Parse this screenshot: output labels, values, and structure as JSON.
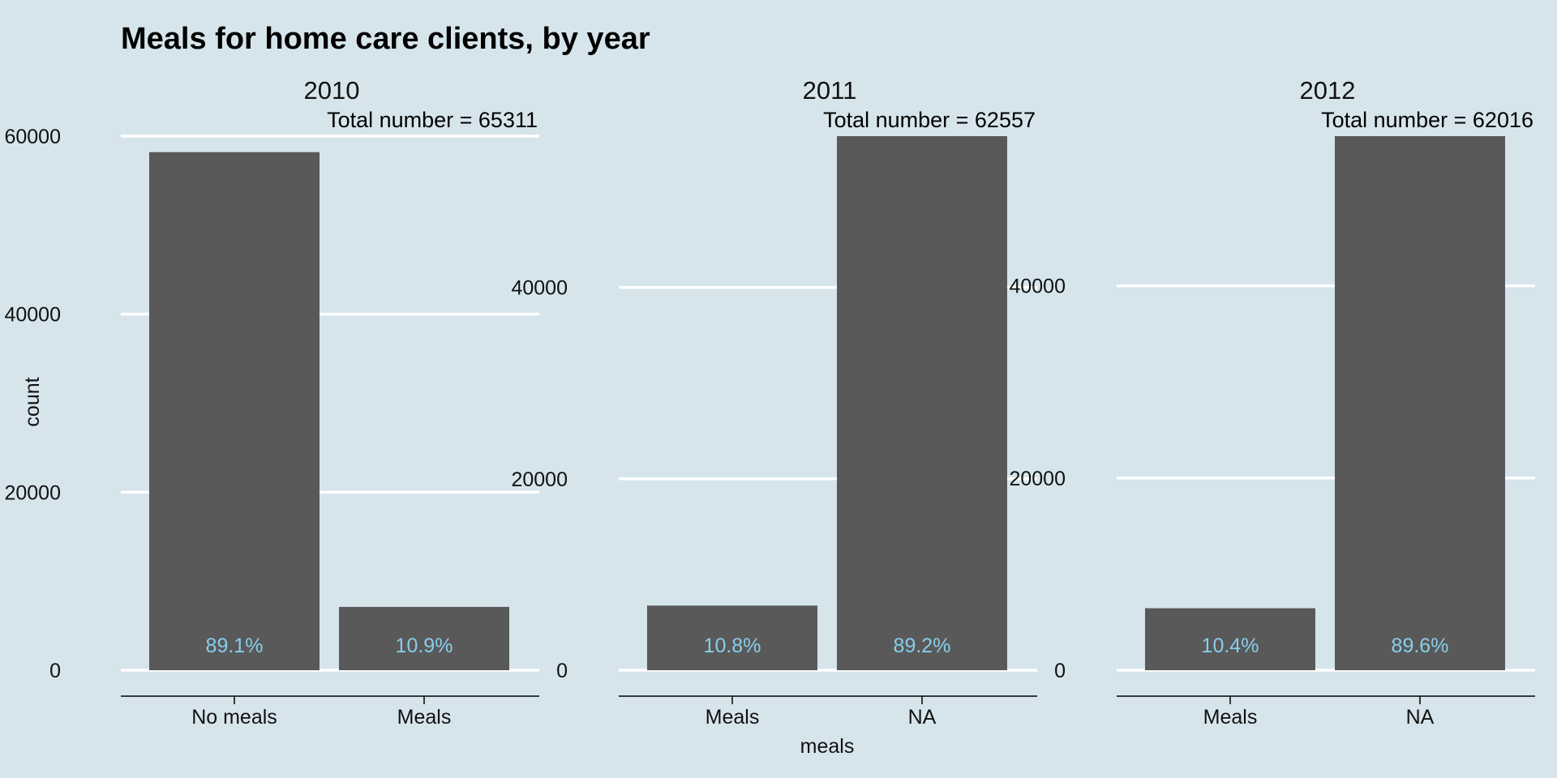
{
  "colors": {
    "background": "#d6e5ec",
    "bar": "#595959",
    "grid": "#ffffff",
    "axis": "#000000",
    "percent_label": "#87ceeb"
  },
  "chart_data": {
    "type": "bar",
    "title": "Meals for home care clients, by year",
    "xlabel": "meals",
    "ylabel": "count",
    "grid": "horizontal major gridlines",
    "legend": "none",
    "facets": [
      {
        "label": "2010",
        "total_label": "Total number = 65311",
        "categories": [
          "No meals",
          "Meals"
        ],
        "values": [
          58200,
          7111
        ],
        "percent_labels": [
          "89.1%",
          "10.9%"
        ],
        "ylim": [
          0,
          60000
        ],
        "yticks": [
          0,
          20000,
          40000,
          60000
        ]
      },
      {
        "label": "2011",
        "total_label": "Total number = 62557",
        "categories": [
          "Meals",
          "NA"
        ],
        "values": [
          6756,
          55801
        ],
        "percent_labels": [
          "10.8%",
          "89.2%"
        ],
        "ylim": [
          0,
          55801
        ],
        "yticks": [
          0,
          20000,
          40000
        ]
      },
      {
        "label": "2012",
        "total_label": "Total number = 62016",
        "categories": [
          "Meals",
          "NA"
        ],
        "values": [
          6450,
          55566
        ],
        "percent_labels": [
          "10.4%",
          "89.6%"
        ],
        "ylim": [
          0,
          55566
        ],
        "yticks": [
          0,
          20000,
          40000
        ]
      }
    ]
  }
}
